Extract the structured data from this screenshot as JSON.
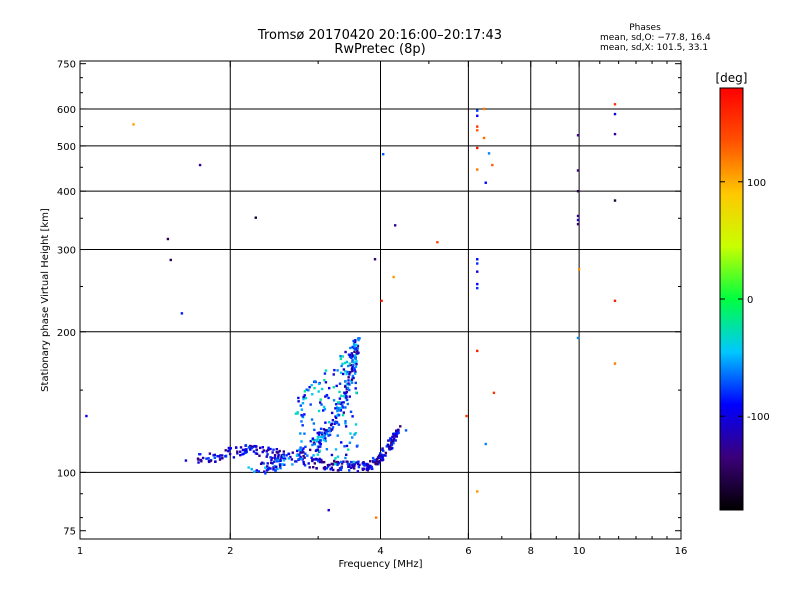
{
  "header": {
    "title_line1": "Tromsø 20170420 20:16:00–20:17:43",
    "title_line2": "RwPretec (8p)",
    "phases_title": "Phases",
    "phases_o": "mean, sd,O: −77.8, 16.4",
    "phases_x": "mean, sd,X: 101.5, 33.1"
  },
  "chart_data": {
    "type": "scatter",
    "xlabel": "Frequency [MHz]",
    "ylabel": "Stationary phase Virtual Height [km]",
    "xscale": "log",
    "yscale": "log",
    "xlim": [
      1,
      16
    ],
    "ylim": [
      72,
      760
    ],
    "xticks": [
      1,
      2,
      4,
      6,
      8,
      10,
      16
    ],
    "xtick_labels": [
      "1",
      "2",
      "4",
      "6",
      "8",
      "10",
      "16"
    ],
    "yticks": [
      75,
      100,
      200,
      300,
      400,
      500,
      600,
      750
    ],
    "ytick_labels": [
      "75",
      "100",
      "200",
      "300",
      "400",
      "500",
      "600",
      "750"
    ],
    "grid_x": [
      2,
      4,
      6,
      8,
      10
    ],
    "grid_y": [
      100,
      200,
      300,
      400,
      500,
      600
    ],
    "colorbar": {
      "label": "[deg]",
      "range": [
        -180,
        180
      ],
      "ticks": [
        100,
        0,
        -100
      ],
      "tick_labels": [
        "100",
        "0",
        "-100"
      ],
      "colormap": "rainbow",
      "stops": [
        "#000000",
        "#3b007a",
        "#0000ff",
        "#00c8ff",
        "#00ff40",
        "#c8ff00",
        "#ffc800",
        "#ff5000",
        "#ff0000"
      ]
    },
    "points": [
      {
        "x": 1.03,
        "y": 132,
        "c": -95
      },
      {
        "x": 1.28,
        "y": 556,
        "c": 105
      },
      {
        "x": 1.5,
        "y": 316,
        "c": -150
      },
      {
        "x": 1.52,
        "y": 285,
        "c": -150
      },
      {
        "x": 1.6,
        "y": 219,
        "c": -85
      },
      {
        "x": 1.63,
        "y": 106,
        "c": -100
      },
      {
        "x": 1.74,
        "y": 455,
        "c": -130
      },
      {
        "x": 2.25,
        "y": 351,
        "c": -160
      },
      {
        "x": 3.15,
        "y": 83,
        "c": -105
      },
      {
        "x": 3.9,
        "y": 286,
        "c": -140
      },
      {
        "x": 3.92,
        "y": 80,
        "c": 120
      },
      {
        "x": 4.02,
        "y": 233,
        "c": 160
      },
      {
        "x": 4.05,
        "y": 480,
        "c": -70
      },
      {
        "x": 4.25,
        "y": 262,
        "c": 110
      },
      {
        "x": 4.28,
        "y": 338,
        "c": -130
      },
      {
        "x": 4.5,
        "y": 123,
        "c": -70
      },
      {
        "x": 5.2,
        "y": 311,
        "c": 140
      },
      {
        "x": 5.95,
        "y": 132,
        "c": 150
      },
      {
        "x": 6.25,
        "y": 595,
        "c": -75
      },
      {
        "x": 6.25,
        "y": 580,
        "c": -90
      },
      {
        "x": 6.25,
        "y": 550,
        "c": 150
      },
      {
        "x": 6.25,
        "y": 540,
        "c": 130
      },
      {
        "x": 6.25,
        "y": 495,
        "c": 170
      },
      {
        "x": 6.25,
        "y": 445,
        "c": 120
      },
      {
        "x": 6.25,
        "y": 286,
        "c": -90
      },
      {
        "x": 6.25,
        "y": 280,
        "c": -80
      },
      {
        "x": 6.25,
        "y": 269,
        "c": -100
      },
      {
        "x": 6.25,
        "y": 253,
        "c": -90
      },
      {
        "x": 6.25,
        "y": 248,
        "c": -80
      },
      {
        "x": 6.25,
        "y": 182,
        "c": 165
      },
      {
        "x": 6.25,
        "y": 91,
        "c": 110
      },
      {
        "x": 6.45,
        "y": 600,
        "c": 120
      },
      {
        "x": 6.45,
        "y": 520,
        "c": 125
      },
      {
        "x": 6.5,
        "y": 417,
        "c": -90
      },
      {
        "x": 6.5,
        "y": 115,
        "c": -60
      },
      {
        "x": 6.6,
        "y": 482,
        "c": -60
      },
      {
        "x": 6.7,
        "y": 455,
        "c": 130
      },
      {
        "x": 6.75,
        "y": 148,
        "c": 150
      },
      {
        "x": 9.95,
        "y": 527,
        "c": -130
      },
      {
        "x": 9.95,
        "y": 443,
        "c": -140
      },
      {
        "x": 9.95,
        "y": 400,
        "c": -150
      },
      {
        "x": 9.95,
        "y": 354,
        "c": -130
      },
      {
        "x": 9.95,
        "y": 347,
        "c": -110
      },
      {
        "x": 9.95,
        "y": 340,
        "c": -140
      },
      {
        "x": 10.0,
        "y": 272,
        "c": 110
      },
      {
        "x": 9.95,
        "y": 194,
        "c": -60
      },
      {
        "x": 11.8,
        "y": 614,
        "c": 150
      },
      {
        "x": 11.8,
        "y": 585,
        "c": -100
      },
      {
        "x": 11.8,
        "y": 530,
        "c": -130
      },
      {
        "x": 11.8,
        "y": 382,
        "c": -160
      },
      {
        "x": 11.8,
        "y": 233,
        "c": 165
      },
      {
        "x": 11.8,
        "y": 171,
        "c": 120
      }
    ],
    "trace_lower": [
      [
        1.72,
        107
      ],
      [
        1.85,
        108
      ],
      [
        2.0,
        110
      ],
      [
        2.15,
        112
      ],
      [
        2.3,
        111
      ],
      [
        2.5,
        109
      ],
      [
        2.7,
        107
      ],
      [
        2.9,
        105
      ],
      [
        3.1,
        104
      ],
      [
        3.3,
        103.5
      ],
      [
        3.5,
        103
      ],
      [
        3.7,
        103
      ],
      [
        3.85,
        104
      ],
      [
        3.95,
        106
      ],
      [
        4.05,
        109
      ],
      [
        4.15,
        113
      ],
      [
        4.25,
        118
      ],
      [
        4.35,
        124
      ]
    ],
    "trace_upper": [
      [
        2.2,
        101
      ],
      [
        2.4,
        103
      ],
      [
        2.6,
        106
      ],
      [
        2.8,
        110
      ],
      [
        3.0,
        116
      ],
      [
        3.15,
        123
      ],
      [
        3.3,
        133
      ],
      [
        3.42,
        148
      ],
      [
        3.5,
        165
      ],
      [
        3.55,
        180
      ],
      [
        3.6,
        192
      ]
    ]
  }
}
